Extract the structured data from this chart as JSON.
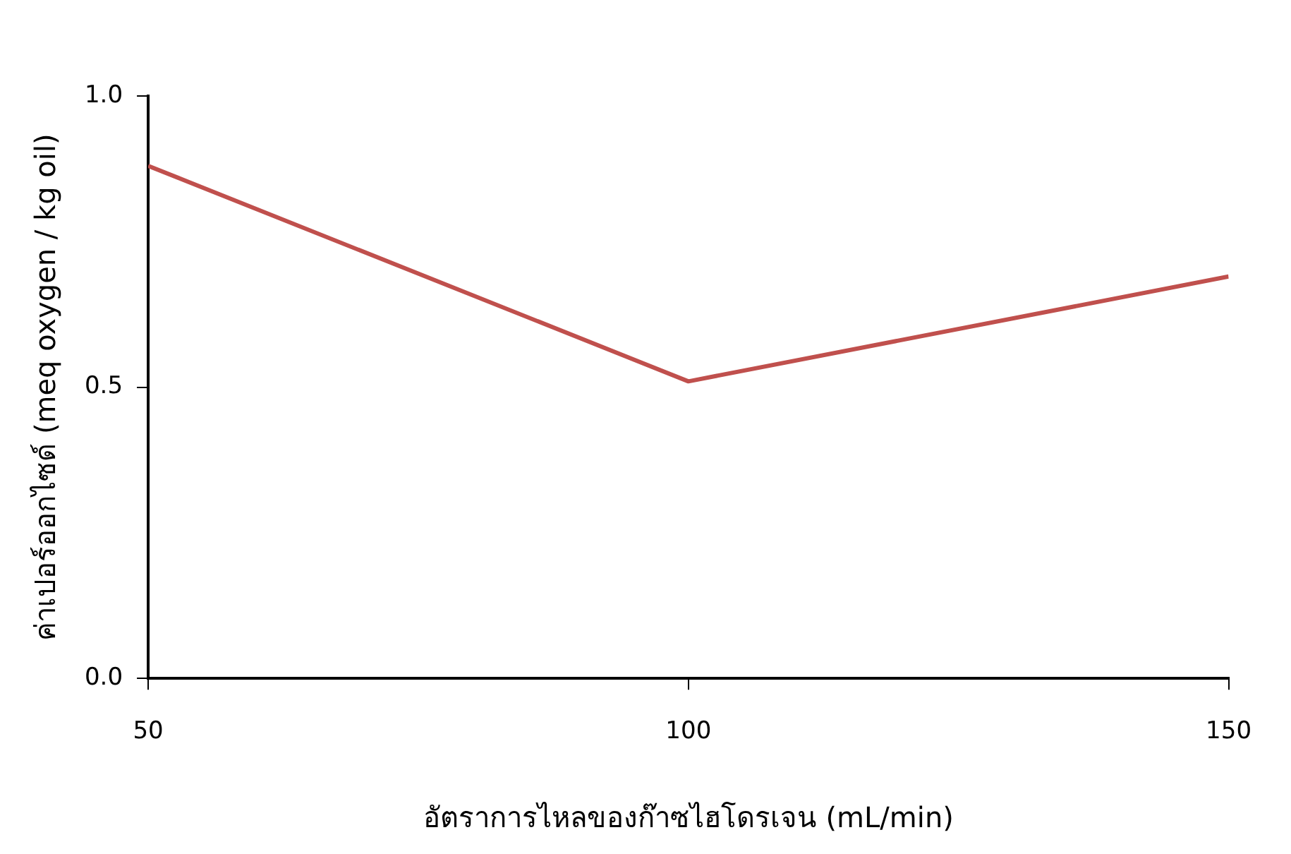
{
  "chart_data": {
    "type": "line",
    "xlabel": "อัตราการไหลของก๊าซไฮโดรเจน (mL/min)",
    "ylabel": "ค่าเปอร์ออกไซด์ (meq oxygen / kg oil)",
    "x": [
      50,
      100,
      150
    ],
    "series": [
      {
        "color": "#c0504d",
        "values": [
          0.88,
          0.51,
          0.69
        ]
      }
    ],
    "xlim": [
      50,
      150
    ],
    "xticks": [
      50,
      100,
      150
    ],
    "ylim": [
      0,
      1
    ],
    "yticks": [
      {
        "value": 0,
        "label": "0.0"
      },
      {
        "value": 0.5,
        "label": "0.5"
      },
      {
        "value": 1,
        "label": "1.0"
      }
    ],
    "grid": false,
    "legend": false,
    "marker": "none",
    "line_style": "solid"
  }
}
